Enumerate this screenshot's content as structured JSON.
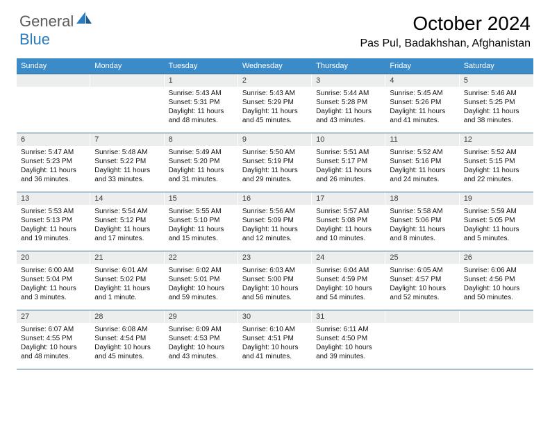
{
  "brand": {
    "text1": "General",
    "text2": "Blue",
    "color1": "#5a5a5a",
    "color2": "#2b7bbf"
  },
  "header": {
    "title": "October 2024",
    "location": "Pas Pul, Badakhshan, Afghanistan"
  },
  "colors": {
    "header_bar": "#3b8bc9",
    "day_num_bg": "#eceded",
    "row_border": "#3b6a8f",
    "text": "#000000",
    "bg": "#ffffff"
  },
  "weekdays": [
    "Sunday",
    "Monday",
    "Tuesday",
    "Wednesday",
    "Thursday",
    "Friday",
    "Saturday"
  ],
  "weeks": [
    [
      {
        "num": "",
        "sunrise": "",
        "sunset": "",
        "daylight": ""
      },
      {
        "num": "",
        "sunrise": "",
        "sunset": "",
        "daylight": ""
      },
      {
        "num": "1",
        "sunrise": "Sunrise: 5:43 AM",
        "sunset": "Sunset: 5:31 PM",
        "daylight": "Daylight: 11 hours and 48 minutes."
      },
      {
        "num": "2",
        "sunrise": "Sunrise: 5:43 AM",
        "sunset": "Sunset: 5:29 PM",
        "daylight": "Daylight: 11 hours and 45 minutes."
      },
      {
        "num": "3",
        "sunrise": "Sunrise: 5:44 AM",
        "sunset": "Sunset: 5:28 PM",
        "daylight": "Daylight: 11 hours and 43 minutes."
      },
      {
        "num": "4",
        "sunrise": "Sunrise: 5:45 AM",
        "sunset": "Sunset: 5:26 PM",
        "daylight": "Daylight: 11 hours and 41 minutes."
      },
      {
        "num": "5",
        "sunrise": "Sunrise: 5:46 AM",
        "sunset": "Sunset: 5:25 PM",
        "daylight": "Daylight: 11 hours and 38 minutes."
      }
    ],
    [
      {
        "num": "6",
        "sunrise": "Sunrise: 5:47 AM",
        "sunset": "Sunset: 5:23 PM",
        "daylight": "Daylight: 11 hours and 36 minutes."
      },
      {
        "num": "7",
        "sunrise": "Sunrise: 5:48 AM",
        "sunset": "Sunset: 5:22 PM",
        "daylight": "Daylight: 11 hours and 33 minutes."
      },
      {
        "num": "8",
        "sunrise": "Sunrise: 5:49 AM",
        "sunset": "Sunset: 5:20 PM",
        "daylight": "Daylight: 11 hours and 31 minutes."
      },
      {
        "num": "9",
        "sunrise": "Sunrise: 5:50 AM",
        "sunset": "Sunset: 5:19 PM",
        "daylight": "Daylight: 11 hours and 29 minutes."
      },
      {
        "num": "10",
        "sunrise": "Sunrise: 5:51 AM",
        "sunset": "Sunset: 5:17 PM",
        "daylight": "Daylight: 11 hours and 26 minutes."
      },
      {
        "num": "11",
        "sunrise": "Sunrise: 5:52 AM",
        "sunset": "Sunset: 5:16 PM",
        "daylight": "Daylight: 11 hours and 24 minutes."
      },
      {
        "num": "12",
        "sunrise": "Sunrise: 5:52 AM",
        "sunset": "Sunset: 5:15 PM",
        "daylight": "Daylight: 11 hours and 22 minutes."
      }
    ],
    [
      {
        "num": "13",
        "sunrise": "Sunrise: 5:53 AM",
        "sunset": "Sunset: 5:13 PM",
        "daylight": "Daylight: 11 hours and 19 minutes."
      },
      {
        "num": "14",
        "sunrise": "Sunrise: 5:54 AM",
        "sunset": "Sunset: 5:12 PM",
        "daylight": "Daylight: 11 hours and 17 minutes."
      },
      {
        "num": "15",
        "sunrise": "Sunrise: 5:55 AM",
        "sunset": "Sunset: 5:10 PM",
        "daylight": "Daylight: 11 hours and 15 minutes."
      },
      {
        "num": "16",
        "sunrise": "Sunrise: 5:56 AM",
        "sunset": "Sunset: 5:09 PM",
        "daylight": "Daylight: 11 hours and 12 minutes."
      },
      {
        "num": "17",
        "sunrise": "Sunrise: 5:57 AM",
        "sunset": "Sunset: 5:08 PM",
        "daylight": "Daylight: 11 hours and 10 minutes."
      },
      {
        "num": "18",
        "sunrise": "Sunrise: 5:58 AM",
        "sunset": "Sunset: 5:06 PM",
        "daylight": "Daylight: 11 hours and 8 minutes."
      },
      {
        "num": "19",
        "sunrise": "Sunrise: 5:59 AM",
        "sunset": "Sunset: 5:05 PM",
        "daylight": "Daylight: 11 hours and 5 minutes."
      }
    ],
    [
      {
        "num": "20",
        "sunrise": "Sunrise: 6:00 AM",
        "sunset": "Sunset: 5:04 PM",
        "daylight": "Daylight: 11 hours and 3 minutes."
      },
      {
        "num": "21",
        "sunrise": "Sunrise: 6:01 AM",
        "sunset": "Sunset: 5:02 PM",
        "daylight": "Daylight: 11 hours and 1 minute."
      },
      {
        "num": "22",
        "sunrise": "Sunrise: 6:02 AM",
        "sunset": "Sunset: 5:01 PM",
        "daylight": "Daylight: 10 hours and 59 minutes."
      },
      {
        "num": "23",
        "sunrise": "Sunrise: 6:03 AM",
        "sunset": "Sunset: 5:00 PM",
        "daylight": "Daylight: 10 hours and 56 minutes."
      },
      {
        "num": "24",
        "sunrise": "Sunrise: 6:04 AM",
        "sunset": "Sunset: 4:59 PM",
        "daylight": "Daylight: 10 hours and 54 minutes."
      },
      {
        "num": "25",
        "sunrise": "Sunrise: 6:05 AM",
        "sunset": "Sunset: 4:57 PM",
        "daylight": "Daylight: 10 hours and 52 minutes."
      },
      {
        "num": "26",
        "sunrise": "Sunrise: 6:06 AM",
        "sunset": "Sunset: 4:56 PM",
        "daylight": "Daylight: 10 hours and 50 minutes."
      }
    ],
    [
      {
        "num": "27",
        "sunrise": "Sunrise: 6:07 AM",
        "sunset": "Sunset: 4:55 PM",
        "daylight": "Daylight: 10 hours and 48 minutes."
      },
      {
        "num": "28",
        "sunrise": "Sunrise: 6:08 AM",
        "sunset": "Sunset: 4:54 PM",
        "daylight": "Daylight: 10 hours and 45 minutes."
      },
      {
        "num": "29",
        "sunrise": "Sunrise: 6:09 AM",
        "sunset": "Sunset: 4:53 PM",
        "daylight": "Daylight: 10 hours and 43 minutes."
      },
      {
        "num": "30",
        "sunrise": "Sunrise: 6:10 AM",
        "sunset": "Sunset: 4:51 PM",
        "daylight": "Daylight: 10 hours and 41 minutes."
      },
      {
        "num": "31",
        "sunrise": "Sunrise: 6:11 AM",
        "sunset": "Sunset: 4:50 PM",
        "daylight": "Daylight: 10 hours and 39 minutes."
      },
      {
        "num": "",
        "sunrise": "",
        "sunset": "",
        "daylight": ""
      },
      {
        "num": "",
        "sunrise": "",
        "sunset": "",
        "daylight": ""
      }
    ]
  ]
}
